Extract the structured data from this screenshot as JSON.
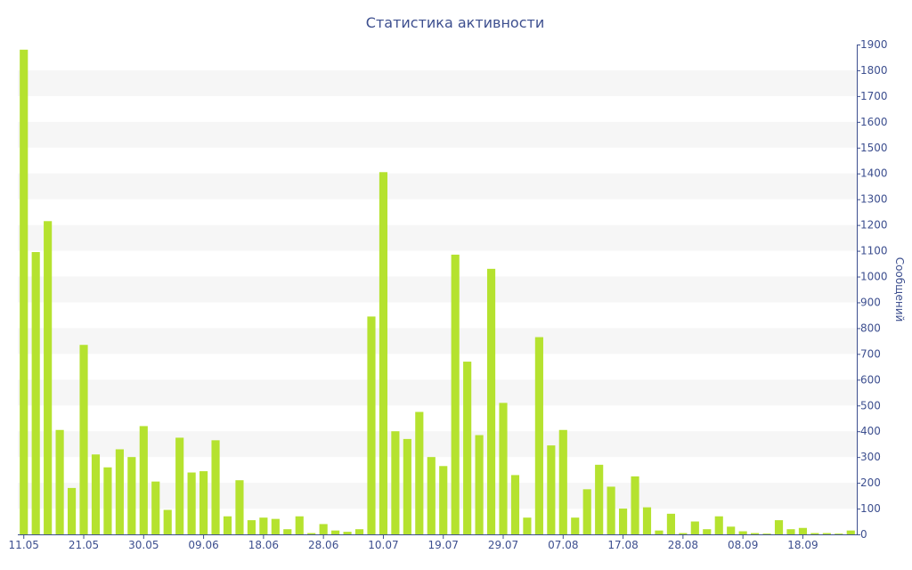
{
  "chart_data": {
    "type": "bar",
    "title": "Статистика активности",
    "ylabel": "Сообщений",
    "xlabel": "",
    "ylim": [
      0,
      1900
    ],
    "y_ticks": [
      0,
      100,
      200,
      300,
      400,
      500,
      600,
      700,
      800,
      900,
      1000,
      1100,
      1200,
      1300,
      1400,
      1500,
      1600,
      1700,
      1800,
      1900
    ],
    "y_axis_side": "right",
    "grid": "alternating horizontal bands",
    "bar_color": "#b5e22f",
    "text_color": "#3d4f8f",
    "band_color": "#f6f6f6",
    "x_tick_labels": [
      {
        "index": 0,
        "label": "11.05"
      },
      {
        "index": 5,
        "label": "21.05"
      },
      {
        "index": 10,
        "label": "30.05"
      },
      {
        "index": 15,
        "label": "09.06"
      },
      {
        "index": 20,
        "label": "18.06"
      },
      {
        "index": 25,
        "label": "28.06"
      },
      {
        "index": 30,
        "label": "10.07"
      },
      {
        "index": 35,
        "label": "19.07"
      },
      {
        "index": 40,
        "label": "29.07"
      },
      {
        "index": 45,
        "label": "07.08"
      },
      {
        "index": 50,
        "label": "17.08"
      },
      {
        "index": 55,
        "label": "28.08"
      },
      {
        "index": 60,
        "label": "08.09"
      },
      {
        "index": 65,
        "label": "18.09"
      }
    ],
    "values": [
      1880,
      1095,
      1215,
      405,
      180,
      735,
      310,
      260,
      330,
      300,
      420,
      205,
      95,
      375,
      240,
      245,
      365,
      70,
      210,
      55,
      65,
      60,
      20,
      70,
      5,
      40,
      15,
      10,
      20,
      845,
      1405,
      400,
      370,
      475,
      300,
      265,
      1085,
      670,
      385,
      1030,
      510,
      230,
      65,
      765,
      345,
      405,
      65,
      175,
      270,
      185,
      100,
      225,
      105,
      15,
      80,
      5,
      50,
      20,
      70,
      30,
      12,
      5,
      3,
      55,
      20,
      25,
      5,
      5,
      3,
      15
    ]
  }
}
